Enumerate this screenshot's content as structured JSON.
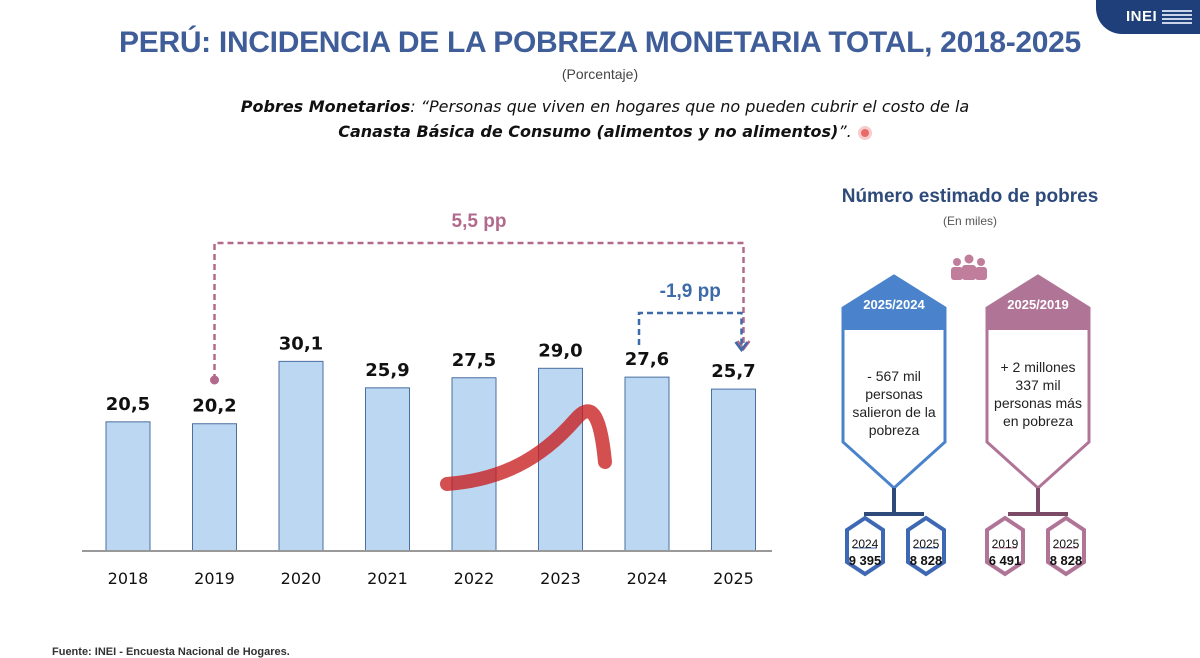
{
  "header": {
    "logo": "INEI",
    "title": "PERÚ: INCIDENCIA DE LA POBREZA MONETARIA TOTAL, 2018-2025",
    "subtitle": "(Porcentaje)",
    "definition_term": "Pobres Monetarios",
    "definition_text": ": “Personas que viven en hogares que no pueden cubrir el costo de la",
    "definition_bold": "Canasta Básica de Consumo (alimentos y no alimentos)",
    "definition_end": "”."
  },
  "chart_data": {
    "type": "bar",
    "categories": [
      "2018",
      "2019",
      "2020",
      "2021",
      "2022",
      "2023",
      "2024",
      "2025"
    ],
    "values": [
      20.5,
      20.2,
      30.1,
      25.9,
      27.5,
      29.0,
      27.6,
      25.7
    ],
    "value_labels": [
      "20,5",
      "20,2",
      "30,1",
      "25,9",
      "27,5",
      "29,0",
      "27,6",
      "25,7"
    ],
    "annotations": [
      {
        "text": "5,5 pp",
        "from": "2019",
        "to": "2025",
        "color": "#b26a8c"
      },
      {
        "text": "-1,9 pp",
        "from": "2024",
        "to": "2025",
        "color": "#3d6aa8"
      }
    ],
    "bar_color": "#bcd7f2",
    "bar_border": "#4a6fa0",
    "grid": false
  },
  "panel": {
    "title": "Número estimado de pobres",
    "subtitle": "(En miles)",
    "left": {
      "tag": "2025/2024",
      "description": "- 567 mil personas salieron de la pobreza",
      "color": "#4a83cc",
      "years": [
        {
          "year": "2024",
          "value": "9 395"
        },
        {
          "year": "2025",
          "value": "8 828"
        }
      ]
    },
    "right": {
      "tag": "2025/2019",
      "description": "+ 2 millones 337 mil personas más en pobreza",
      "color": "#b07596",
      "years": [
        {
          "year": "2019",
          "value": "6 491"
        },
        {
          "year": "2025",
          "value": "8 828"
        }
      ]
    }
  },
  "footer": {
    "source": "Fuente: INEI - Encuesta Nacional de Hogares."
  }
}
